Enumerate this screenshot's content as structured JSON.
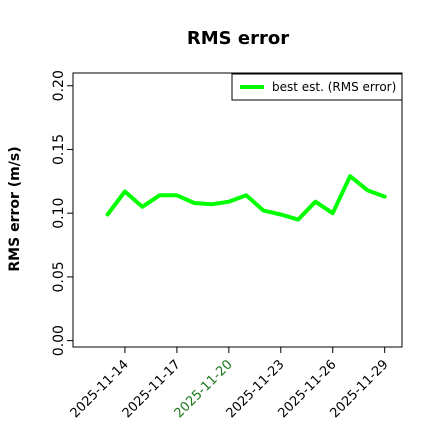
{
  "chart_data": {
    "type": "line",
    "title": "RMS error",
    "ylabel": "RMS error (m/s)",
    "xlabel": "",
    "ylim": [
      -0.005,
      0.21
    ],
    "yticks": [
      0.0,
      0.05,
      0.1,
      0.15,
      0.2
    ],
    "ytick_labels": [
      "0.00",
      "0.05",
      "0.10",
      "0.15",
      "0.20"
    ],
    "x": [
      "2025-11-13",
      "2025-11-14",
      "2025-11-15",
      "2025-11-16",
      "2025-11-17",
      "2025-11-18",
      "2025-11-19",
      "2025-11-20",
      "2025-11-21",
      "2025-11-22",
      "2025-11-23",
      "2025-11-24",
      "2025-11-25",
      "2025-11-26",
      "2025-11-27",
      "2025-11-28",
      "2025-11-29"
    ],
    "xlim": [
      "2025-11-11",
      "2025-11-30"
    ],
    "xtick_labels": [
      "2025-11-14",
      "2025-11-17",
      "2025-11-20",
      "2025-11-23",
      "2025-11-26",
      "2025-11-29"
    ],
    "highlighted_tick": "2025-11-20",
    "highlight_color": "#1a7a1a",
    "grid": false,
    "legend_position": "top-right",
    "series": [
      {
        "name": "best est. (RMS error)",
        "color": "#00ff00",
        "values": [
          0.099,
          0.117,
          0.105,
          0.114,
          0.114,
          0.108,
          0.107,
          0.109,
          0.114,
          0.102,
          0.099,
          0.095,
          0.109,
          0.1,
          0.129,
          0.118,
          0.113
        ]
      }
    ]
  }
}
